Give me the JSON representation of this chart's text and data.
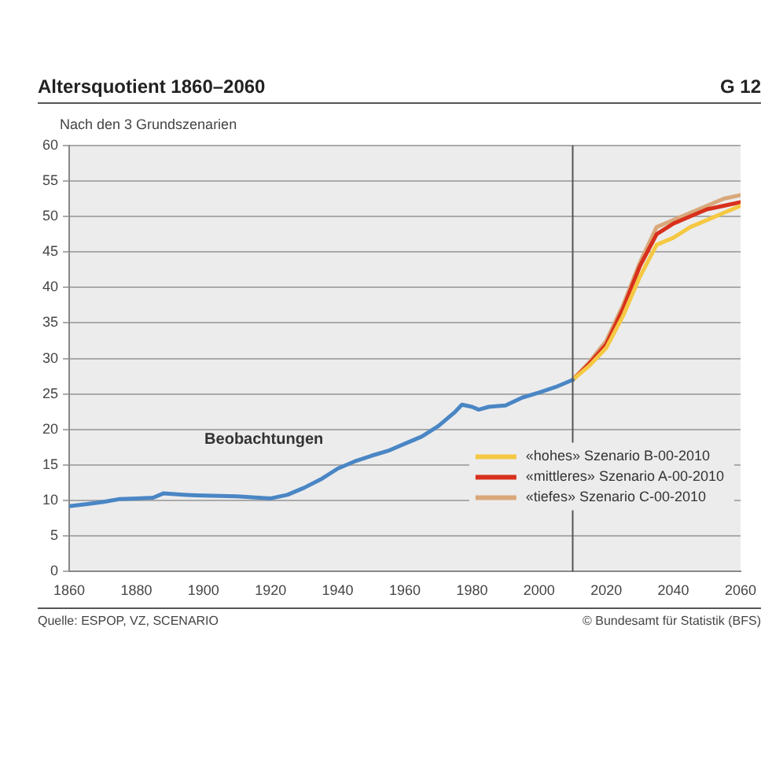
{
  "chart_data": {
    "type": "line",
    "title": "Altersquotient 1860–2060",
    "subtitle": "Nach den 3 Grundszenarien",
    "annotations": [
      "G 12",
      "Beobachtungen",
      "Quelle: ESPOP, VZ, SCENARIO",
      "© Bundesamt für Statistik (BFS)"
    ],
    "series": [
      {
        "color": "#4a86c5",
        "x": [
          1860,
          1865,
          1870,
          1875,
          1880,
          1885,
          1888,
          1895,
          1900,
          1910,
          1920,
          1925,
          1930,
          1935,
          1940,
          1945,
          1950,
          1955,
          1960,
          1965,
          1970,
          1975,
          1977,
          1980,
          1982,
          1985,
          1990,
          1995,
          2000,
          2005,
          2010
        ],
        "values": [
          9.2,
          9.5,
          9.8,
          10.2,
          10.3,
          10.4,
          11,
          10.8,
          10.7,
          10.6,
          10.3,
          10.8,
          11.8,
          13,
          14.5,
          15.5,
          16.3,
          17,
          18,
          19,
          20.5,
          22.5,
          23.5,
          23.2,
          22.8,
          23.2,
          23.4,
          24.5,
          25.2,
          26,
          27
        ]
      },
      {
        "name": "«hohes» Szenario B-00-2010",
        "color": "#f5c842",
        "x": [
          2010,
          2015,
          2020,
          2025,
          2030,
          2035,
          2040,
          2045,
          2050,
          2055,
          2060
        ],
        "values": [
          27,
          29,
          31.5,
          36,
          41.5,
          46,
          47,
          48.5,
          49.5,
          50.5,
          51.5
        ]
      },
      {
        "name": "«mittleres» Szenario A-00-2010",
        "color": "#d8301c",
        "x": [
          2010,
          2015,
          2020,
          2025,
          2030,
          2035,
          2040,
          2045,
          2050,
          2055,
          2060
        ],
        "values": [
          27,
          29.3,
          32,
          37,
          43,
          47.5,
          49,
          50,
          51,
          51.5,
          52
        ]
      },
      {
        "name": "«tiefes» Szenario C-00-2010",
        "color": "#d9a87a",
        "x": [
          2010,
          2015,
          2020,
          2025,
          2030,
          2035,
          2040,
          2045,
          2050,
          2055,
          2060
        ],
        "values": [
          27,
          29.5,
          32.5,
          37.5,
          43.5,
          48.5,
          49.5,
          50.5,
          51.5,
          52.5,
          53
        ]
      }
    ],
    "xlim": [
      1860,
      2060
    ],
    "xticks": [
      1860,
      1880,
      1900,
      1920,
      1940,
      1960,
      1980,
      2000,
      2020,
      2040,
      2060
    ],
    "ylim": [
      0,
      60
    ],
    "yticks": [
      0,
      5,
      10,
      15,
      20,
      25,
      30,
      35,
      40,
      45,
      50,
      55,
      60
    ],
    "ref_lines": [
      {
        "axis": "x",
        "value": 2010,
        "color": "#555555"
      }
    ],
    "grid": "y",
    "legend": "bottom right",
    "marker": "none",
    "line_style": "solid"
  }
}
